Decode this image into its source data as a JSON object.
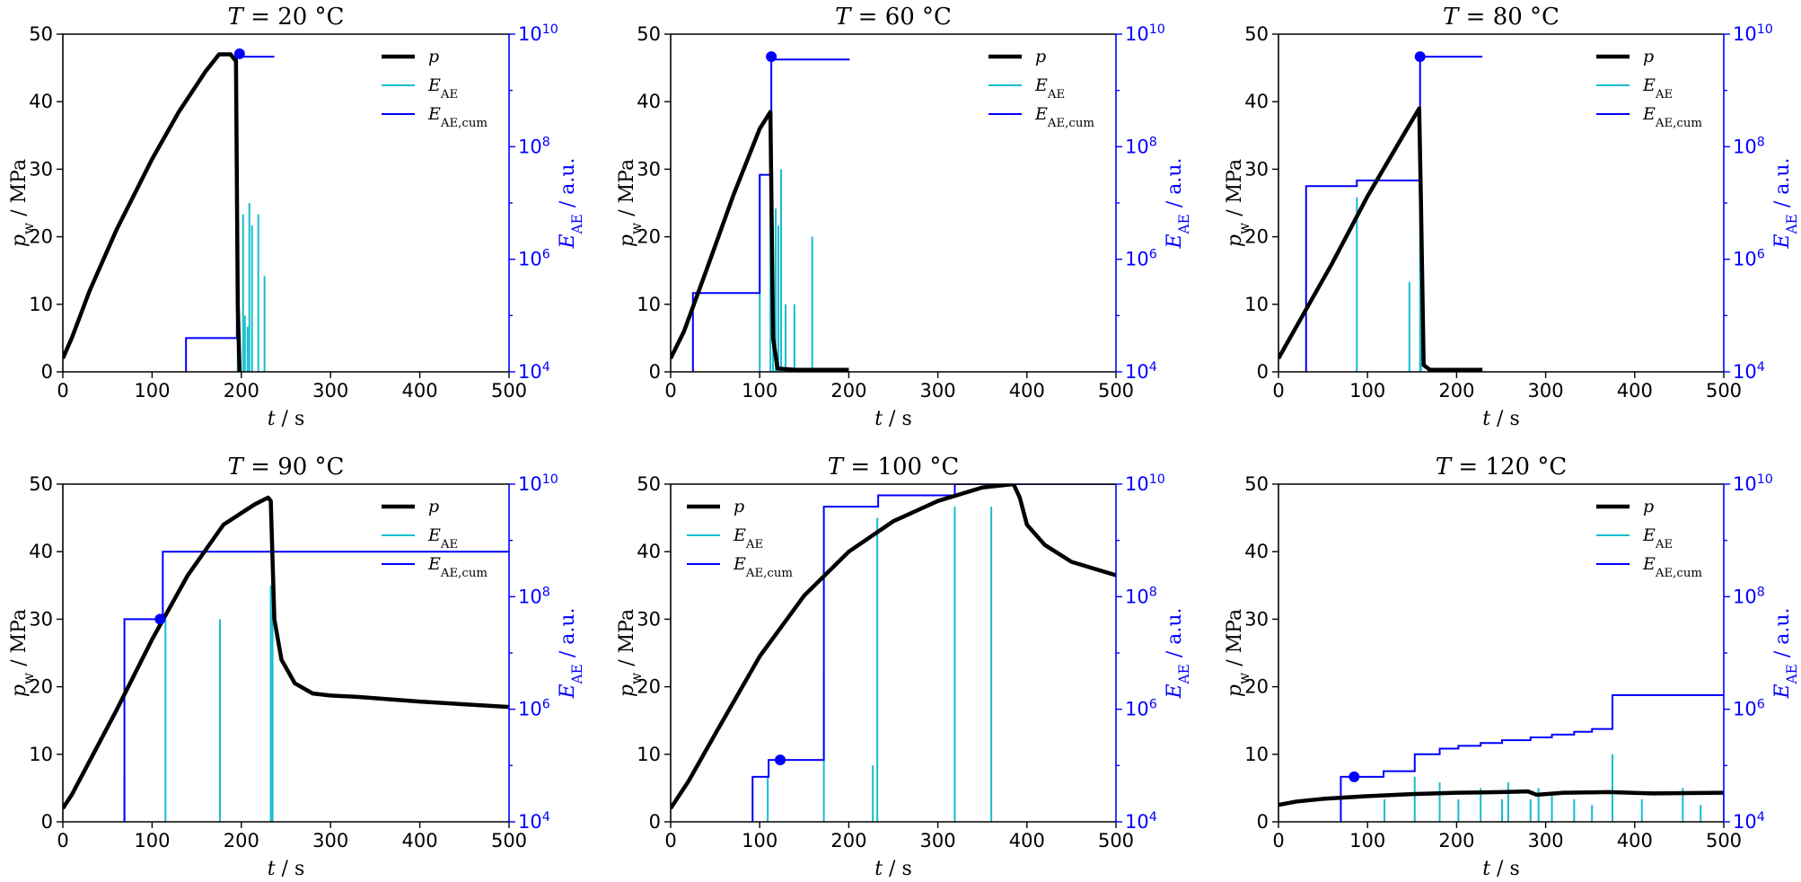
{
  "figure": {
    "colors": {
      "pressure": "#000000",
      "ae": "#17becf",
      "ae_cum": "#0000ff",
      "marker": "#0000ff"
    }
  },
  "chart_data": [
    {
      "type": "line",
      "title": "T = 20 °C",
      "xlabel": "t / s",
      "ylabel": "p_w / MPa",
      "y2label": "E_AE / a.u.",
      "xlim": [
        0,
        500
      ],
      "ylim": [
        0,
        50
      ],
      "y2lim_log10": [
        4,
        10
      ],
      "y2scale": "log",
      "xticks": [
        "0",
        "100",
        "200",
        "300",
        "400",
        "500"
      ],
      "yticks": [
        "0",
        "10",
        "20",
        "30",
        "40",
        "50"
      ],
      "y2ticks": [
        "10^4",
        "10^6",
        "10^8",
        "10^10"
      ],
      "legend_position": "top-right",
      "legend": [
        "p",
        "E_AE",
        "E_AE,cum"
      ],
      "series": [
        {
          "name": "p",
          "x": [
            0,
            10,
            30,
            60,
            100,
            130,
            160,
            175,
            188,
            194,
            196,
            198
          ],
          "y": [
            2,
            5,
            12,
            21,
            31.5,
            38.5,
            44.5,
            47,
            47,
            46,
            10,
            0
          ]
        },
        {
          "name": "E_AE",
          "x": [
            196,
            202,
            204,
            207,
            209,
            212,
            219,
            226
          ],
          "log10_values": [
            6.7,
            6.8,
            5.0,
            4.8,
            7.0,
            6.6,
            6.8,
            5.7
          ]
        },
        {
          "name": "E_AE,cum",
          "steps": [
            [
              138,
              4.6
            ],
            [
              195,
              9.6
            ],
            [
              237,
              9.6
            ]
          ],
          "marker": [
            198,
            9.65
          ]
        }
      ]
    },
    {
      "type": "line",
      "title": "T = 60 °C",
      "xlabel": "t / s",
      "ylabel": "p_w / MPa",
      "y2label": "E_AE / a.u.",
      "xlim": [
        0,
        500
      ],
      "ylim": [
        0,
        50
      ],
      "y2lim_log10": [
        4,
        10
      ],
      "y2scale": "log",
      "xticks": [
        "0",
        "100",
        "200",
        "300",
        "400",
        "500"
      ],
      "yticks": [
        "0",
        "10",
        "20",
        "30",
        "40",
        "50"
      ],
      "y2ticks": [
        "10^4",
        "10^6",
        "10^8",
        "10^10"
      ],
      "legend_position": "top-right",
      "legend": [
        "p",
        "E_AE",
        "E_AE,cum"
      ],
      "series": [
        {
          "name": "p",
          "x": [
            0,
            15,
            40,
            70,
            100,
            112,
            115,
            120,
            140,
            200
          ],
          "y": [
            2,
            6,
            15,
            26,
            36,
            38.5,
            5,
            0.5,
            0.3,
            0.3
          ]
        },
        {
          "name": "E_AE",
          "x": [
            100,
            112,
            115,
            118,
            121,
            124,
            129,
            139,
            159
          ],
          "log10_values": [
            7.5,
            7.0,
            6.6,
            6.9,
            6.6,
            7.6,
            5.2,
            5.2,
            6.4
          ]
        },
        {
          "name": "E_AE,cum",
          "steps": [
            [
              25,
              5.4
            ],
            [
              100,
              7.5
            ],
            [
              113,
              9.55
            ],
            [
              201,
              9.55
            ]
          ],
          "marker": [
            113,
            9.6
          ]
        }
      ]
    },
    {
      "type": "line",
      "title": "T = 80 °C",
      "xlabel": "t / s",
      "ylabel": "p_w / MPa",
      "y2label": "E_AE / a.u.",
      "xlim": [
        0,
        500
      ],
      "ylim": [
        0,
        50
      ],
      "y2lim_log10": [
        4,
        10
      ],
      "y2scale": "log",
      "xticks": [
        "0",
        "100",
        "200",
        "300",
        "400",
        "500"
      ],
      "yticks": [
        "0",
        "10",
        "20",
        "30",
        "40",
        "50"
      ],
      "y2ticks": [
        "10^4",
        "10^6",
        "10^8",
        "10^10"
      ],
      "legend_position": "top-right",
      "legend": [
        "p",
        "E_AE",
        "E_AE,cum"
      ],
      "series": [
        {
          "name": "p",
          "x": [
            0,
            30,
            60,
            100,
            140,
            158,
            160,
            163,
            170,
            229
          ],
          "y": [
            2,
            9,
            16,
            26,
            35,
            39,
            25,
            1,
            0.3,
            0.3
          ]
        },
        {
          "name": "E_AE",
          "x": [
            88,
            147,
            159,
            160
          ],
          "log10_values": [
            7.1,
            5.6,
            7.9,
            8.0
          ]
        },
        {
          "name": "E_AE,cum",
          "steps": [
            [
              31,
              7.3
            ],
            [
              88,
              7.4
            ],
            [
              159,
              9.6
            ],
            [
              229,
              9.6
            ]
          ],
          "marker": [
            159,
            9.6
          ]
        }
      ]
    },
    {
      "type": "line",
      "title": "T = 90 °C",
      "xlabel": "t / s",
      "ylabel": "p_w / MPa",
      "y2label": "E_AE / a.u.",
      "xlim": [
        0,
        500
      ],
      "ylim": [
        0,
        50
      ],
      "y2lim_log10": [
        4,
        10
      ],
      "y2scale": "log",
      "xticks": [
        "0",
        "100",
        "200",
        "300",
        "400",
        "500"
      ],
      "yticks": [
        "0",
        "10",
        "20",
        "30",
        "40",
        "50"
      ],
      "y2ticks": [
        "10^4",
        "10^6",
        "10^8",
        "10^10"
      ],
      "legend_position": "top-right",
      "legend": [
        "p",
        "E_AE",
        "E_AE,cum"
      ],
      "series": [
        {
          "name": "p",
          "x": [
            0,
            10,
            30,
            60,
            100,
            140,
            180,
            215,
            230,
            233,
            237,
            245,
            260,
            280,
            300,
            330,
            400,
            500
          ],
          "y": [
            2,
            4,
            9,
            16.5,
            27,
            36.5,
            44,
            47,
            48,
            47.5,
            30,
            24,
            20.5,
            19,
            18.7,
            18.5,
            17.8,
            17
          ]
        },
        {
          "name": "E_AE",
          "x": [
            69,
            115,
            176,
            233,
            235
          ],
          "log10_values": [
            4.8,
            7.6,
            7.6,
            8.2,
            8.2
          ]
        },
        {
          "name": "E_AE,cum",
          "steps": [
            [
              69,
              7.6
            ],
            [
              112,
              8.8
            ],
            [
              235,
              8.8
            ],
            [
              500,
              8.8
            ]
          ],
          "marker": [
            109,
            7.6
          ]
        }
      ]
    },
    {
      "type": "line",
      "title": "T = 100 °C",
      "xlabel": "t / s",
      "ylabel": "p_w / MPa",
      "y2label": "E_AE / a.u.",
      "xlim": [
        0,
        500
      ],
      "ylim": [
        0,
        50
      ],
      "y2lim_log10": [
        4,
        10
      ],
      "y2scale": "log",
      "xticks": [
        "0",
        "100",
        "200",
        "300",
        "400",
        "500"
      ],
      "yticks": [
        "0",
        "10",
        "20",
        "30",
        "40",
        "50"
      ],
      "y2ticks": [
        "10^4",
        "10^6",
        "10^8",
        "10^10"
      ],
      "legend_position": "top-left",
      "legend": [
        "p",
        "E_AE",
        "E_AE,cum"
      ],
      "series": [
        {
          "name": "p",
          "x": [
            0,
            20,
            50,
            100,
            150,
            200,
            250,
            300,
            350,
            385,
            392,
            400,
            420,
            450,
            500
          ],
          "y": [
            2,
            6,
            13,
            24.5,
            33.5,
            40,
            44.5,
            47.5,
            49.5,
            50,
            48,
            44,
            41,
            38.5,
            36.5
          ]
        },
        {
          "name": "E_AE",
          "x": [
            109,
            172,
            227,
            232,
            319,
            360
          ],
          "log10_values": [
            4.8,
            6.6,
            5.0,
            9.4,
            9.6,
            9.6
          ]
        },
        {
          "name": "E_AE,cum",
          "steps": [
            [
              92,
              4.8
            ],
            [
              105,
              4.8
            ],
            [
              109,
              4.8
            ],
            [
              110,
              5.1
            ],
            [
              172,
              9.6
            ],
            [
              233,
              9.8
            ],
            [
              319,
              10
            ],
            [
              500,
              10
            ]
          ],
          "marker": [
            123,
            5.1
          ]
        }
      ]
    },
    {
      "type": "line",
      "title": "T = 120 °C",
      "xlabel": "t / s",
      "ylabel": "p_w / MPa",
      "y2label": "E_AE / a.u.",
      "xlim": [
        0,
        500
      ],
      "ylim": [
        0,
        50
      ],
      "y2lim_log10": [
        4,
        10
      ],
      "y2scale": "log",
      "xticks": [
        "0",
        "100",
        "200",
        "300",
        "400",
        "500"
      ],
      "yticks": [
        "0",
        "10",
        "20",
        "30",
        "40",
        "50"
      ],
      "y2ticks": [
        "10^4",
        "10^6",
        "10^8",
        "10^10"
      ],
      "legend_position": "top-right",
      "legend": [
        "p",
        "E_AE",
        "E_AE,cum"
      ],
      "series": [
        {
          "name": "p",
          "x": [
            0,
            20,
            50,
            100,
            150,
            200,
            250,
            280,
            290,
            320,
            370,
            420,
            500
          ],
          "y": [
            2.5,
            3,
            3.4,
            3.8,
            4.1,
            4.3,
            4.4,
            4.5,
            4.0,
            4.3,
            4.4,
            4.2,
            4.3
          ]
        },
        {
          "name": "E_AE",
          "x": [
            119,
            153,
            181,
            202,
            227,
            251,
            258,
            283,
            292,
            307,
            332,
            352,
            375,
            408,
            454,
            474,
            500
          ],
          "log10_values": [
            4.4,
            4.8,
            4.7,
            4.4,
            4.6,
            4.4,
            4.7,
            4.4,
            4.6,
            4.5,
            4.4,
            4.3,
            5.2,
            4.4,
            4.6,
            4.3,
            4.5
          ]
        },
        {
          "name": "E_AE,cum",
          "steps": [
            [
              70,
              4.8
            ],
            [
              85,
              4.8
            ],
            [
              118,
              4.9
            ],
            [
              153,
              5.2
            ],
            [
              181,
              5.3
            ],
            [
              202,
              5.35
            ],
            [
              227,
              5.4
            ],
            [
              251,
              5.45
            ],
            [
              283,
              5.5
            ],
            [
              307,
              5.55
            ],
            [
              332,
              5.6
            ],
            [
              352,
              5.65
            ],
            [
              375,
              6.25
            ],
            [
              500,
              6.25
            ]
          ],
          "marker": [
            85,
            4.8
          ]
        }
      ]
    }
  ]
}
